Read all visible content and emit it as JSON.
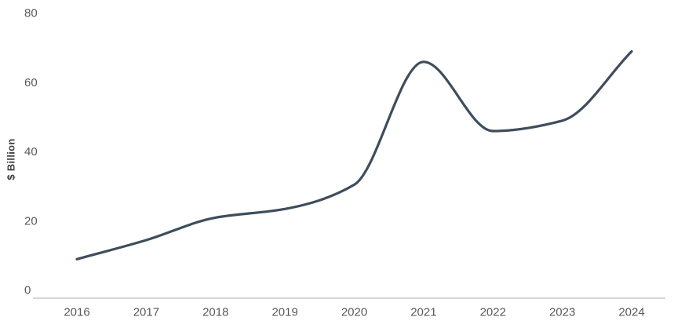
{
  "chart_data": {
    "type": "line",
    "title": "",
    "categories": [
      "2016",
      "2017",
      "2018",
      "2019",
      "2020",
      "2021",
      "2022",
      "2023",
      "2024"
    ],
    "series": [
      {
        "name": "value",
        "values": [
          9,
          14.5,
          21,
          23.5,
          30.5,
          66,
          46,
          49,
          69
        ]
      }
    ],
    "xlabel": "",
    "ylabel": "$ Billion",
    "ylim": [
      0,
      80
    ],
    "yticks": [
      0,
      20,
      40,
      60,
      80
    ],
    "grid": false,
    "legend": "none",
    "smooth": true,
    "colors": {
      "line": "#3e4d5c",
      "axis_line": "#a9adb2",
      "tick_labels": "#595959",
      "y_axis_title": "#404040",
      "background": "#ffffff"
    }
  }
}
